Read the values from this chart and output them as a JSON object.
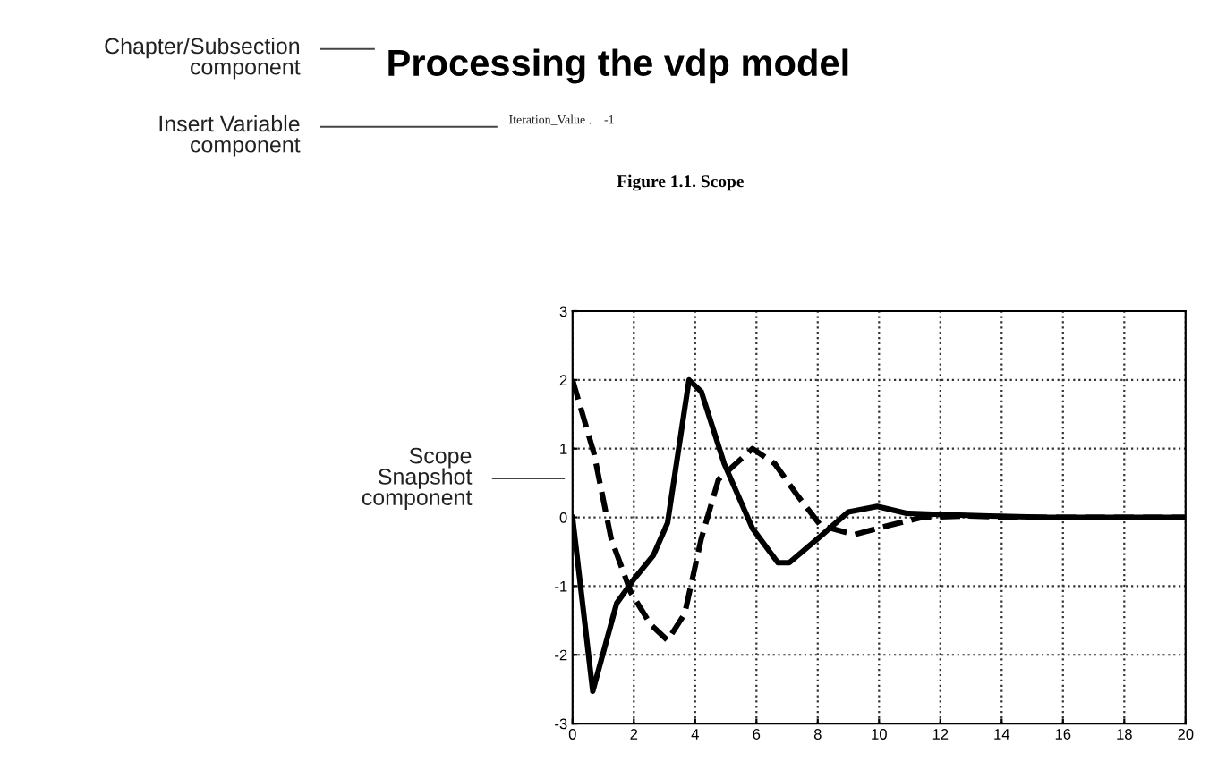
{
  "chart_data": {
    "type": "line",
    "title": "Processing the vdp model",
    "subtitle": "Figure 1.1. Scope",
    "annotations": [
      "Chapter/Subsection\ncomponent",
      "Insert Variable\ncomponent",
      "Iteration_Value .    -1",
      "Scope\nSnapshot\ncomponent"
    ],
    "xlim": [
      0,
      20
    ],
    "xticks": [
      0,
      2,
      4,
      6,
      8,
      10,
      12,
      14,
      16,
      18,
      20
    ],
    "ylim": [
      -3,
      3
    ],
    "yticks": [
      -3,
      -2,
      -1,
      0,
      1,
      2,
      3
    ],
    "grid": true,
    "marker": "none",
    "series": [
      {
        "color": "#000000",
        "line_style": "solid",
        "x": [
          0,
          0.66,
          1.44,
          2.0,
          2.64,
          3.1,
          3.8,
          4.2,
          4.95,
          5.87,
          6.7,
          7.07,
          8.1,
          9.0,
          9.94,
          10.9,
          12.15,
          13.6,
          15.5,
          20
        ],
        "values": [
          0,
          -2.53,
          -1.25,
          -0.9,
          -0.55,
          -0.08,
          2.0,
          1.83,
          0.78,
          -0.16,
          -0.66,
          -0.66,
          -0.27,
          0.08,
          0.16,
          0.06,
          0.04,
          0.02,
          0,
          0
        ]
      },
      {
        "color": "#000000",
        "line_style": "dashed",
        "x": [
          0,
          0.7,
          1.26,
          1.9,
          2.55,
          3.1,
          3.66,
          4.2,
          4.76,
          5.87,
          6.6,
          7.35,
          8.1,
          9.2,
          10.3,
          11.4,
          12.9,
          14.7,
          20
        ],
        "values": [
          2.0,
          0.93,
          -0.31,
          -1.09,
          -1.56,
          -1.79,
          -1.4,
          -0.31,
          0.55,
          1.0,
          0.78,
          0.31,
          -0.12,
          -0.25,
          -0.12,
          0,
          0.02,
          0,
          0
        ]
      }
    ]
  }
}
